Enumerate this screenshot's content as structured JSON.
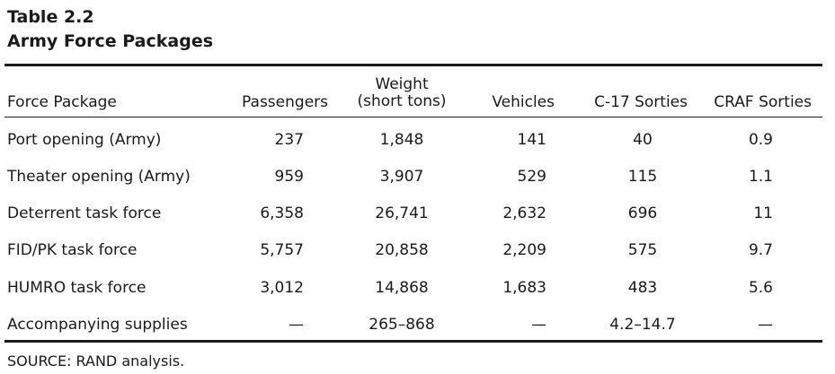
{
  "table": {
    "number": "Table 2.2",
    "title": "Army Force Packages",
    "headers": {
      "force_package": "Force Package",
      "passengers": "Passengers",
      "weight_line1": "Weight",
      "weight_line2": "(short tons)",
      "vehicles": "Vehicles",
      "c17_sorties": "C-17 Sorties",
      "craf_sorties": "CRAF Sorties"
    },
    "rows": [
      {
        "label": "Port opening (Army)",
        "passengers": "237",
        "weight": "1,848",
        "vehicles": "141",
        "c17": "40",
        "craf": "0.9"
      },
      {
        "label": "Theater opening (Army)",
        "passengers": "959",
        "weight": "3,907",
        "vehicles": "529",
        "c17": "115",
        "craf": "1.1"
      },
      {
        "label": "Deterrent task force",
        "passengers": "6,358",
        "weight": "26,741",
        "vehicles": "2,632",
        "c17": "696",
        "craf": "11"
      },
      {
        "label": "FID/PK task force",
        "passengers": "5,757",
        "weight": "20,858",
        "vehicles": "2,209",
        "c17": "575",
        "craf": "9.7"
      },
      {
        "label": "HUMRO task force",
        "passengers": "3,012",
        "weight": "14,868",
        "vehicles": "1,683",
        "c17": "483",
        "craf": "5.6"
      },
      {
        "label": "Accompanying supplies",
        "passengers": "—",
        "weight": "265–868",
        "vehicles": "—",
        "c17": "4.2–14.7",
        "craf": "—"
      }
    ],
    "source": "SOURCE: RAND analysis."
  }
}
